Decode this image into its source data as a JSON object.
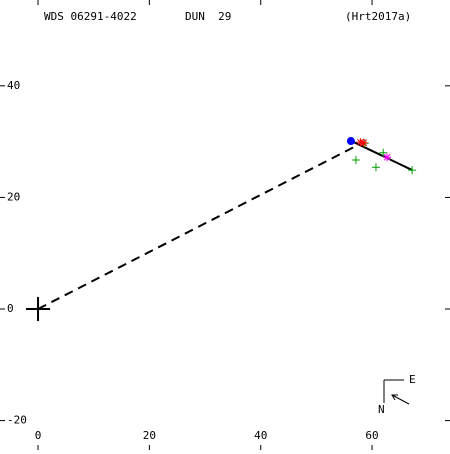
{
  "chart_data": {
    "type": "scatter",
    "header": {
      "id": "WDS 06291-4022",
      "name": "DUN  29",
      "ref": "(Hrt2017a)"
    },
    "compass": {
      "east": "E",
      "north": "N"
    },
    "xlim": [
      -6.83,
      74.0
    ],
    "ylim": [
      -25.27,
      55.38
    ],
    "xticks": [
      0,
      20,
      40,
      60
    ],
    "yticks": [
      -20,
      0,
      20,
      40
    ],
    "series": [
      {
        "mode": "line",
        "dash": true,
        "color": "#000000",
        "x": [
          0,
          57.1
        ],
        "values": [
          0,
          29.2
        ]
      },
      {
        "mode": "line",
        "dash": false,
        "color": "#000000",
        "x": [
          56.3,
          67.2
        ],
        "values": [
          30.1,
          24.9
        ]
      },
      {
        "mode": "marker",
        "marker": "plus",
        "color": "#00a000",
        "x": [
          57.1,
          60.7,
          62,
          67.2,
          58.7
        ],
        "values": [
          26.7,
          25.4,
          28,
          24.9,
          29.7
        ]
      },
      {
        "mode": "marker",
        "marker": "star",
        "color": "#ff0000",
        "x": [
          57.9,
          58.5
        ],
        "values": [
          29.9,
          29.8
        ]
      },
      {
        "mode": "marker",
        "marker": "star",
        "color": "#ff00ff",
        "x": [
          62.7
        ],
        "values": [
          27.2
        ]
      },
      {
        "mode": "marker",
        "marker": "circle",
        "color": "#0000ff",
        "x": [
          56.2
        ],
        "values": [
          30.1
        ]
      },
      {
        "mode": "marker",
        "marker": "big-plus",
        "color": "#000000",
        "x": [
          0
        ],
        "values": [
          0
        ]
      }
    ]
  }
}
